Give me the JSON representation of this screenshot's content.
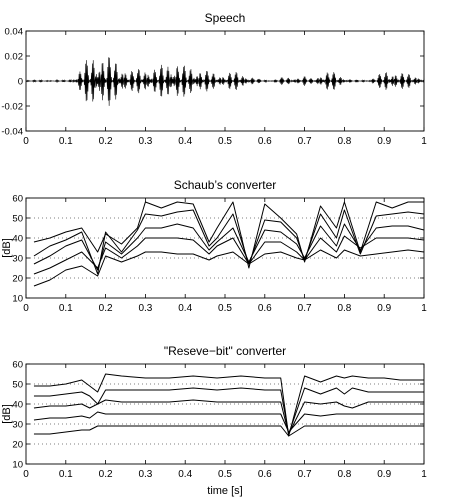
{
  "chart_data": [
    {
      "id": "speech",
      "type": "line",
      "title": "Speech",
      "xlabel": "",
      "ylabel": "",
      "xlim": [
        0,
        1
      ],
      "ylim": [
        -0.04,
        0.04
      ],
      "xticks": [
        0,
        0.1,
        0.2,
        0.3,
        0.4,
        0.5,
        0.6,
        0.7,
        0.8,
        0.9,
        1
      ],
      "xtick_labels": [
        "0",
        "0.1",
        "0.2",
        "0.3",
        "0.4",
        "0.5",
        "0.6",
        "0.7",
        "0.8",
        "0.9",
        "1"
      ],
      "yticks": [
        -0.04,
        -0.02,
        0,
        0.02,
        0.04
      ],
      "ytick_labels": [
        "-0.04",
        "-0.02",
        "0",
        "0.02",
        "0.04"
      ],
      "grid": false,
      "envelope": {
        "x": [
          0,
          0.1,
          0.12,
          0.14,
          0.16,
          0.18,
          0.2,
          0.22,
          0.24,
          0.26,
          0.28,
          0.3,
          0.32,
          0.34,
          0.36,
          0.38,
          0.4,
          0.42,
          0.44,
          0.46,
          0.48,
          0.5,
          0.52,
          0.54,
          0.56,
          0.58,
          0.6,
          0.62,
          0.64,
          0.66,
          0.68,
          0.7,
          0.72,
          0.74,
          0.76,
          0.78,
          0.8,
          0.82,
          0.84,
          0.86,
          0.88,
          0.9,
          0.92,
          0.94,
          0.96,
          0.98,
          1
        ],
        "amplitude": [
          0.0008,
          0.0008,
          0.002,
          0.012,
          0.02,
          0.024,
          0.022,
          0.018,
          0.014,
          0.008,
          0.01,
          0.012,
          0.01,
          0.013,
          0.017,
          0.016,
          0.012,
          0.012,
          0.01,
          0.008,
          0.006,
          0.006,
          0.008,
          0.007,
          0.004,
          0.002,
          0.001,
          0.001,
          0.003,
          0.003,
          0.003,
          0.004,
          0.002,
          0.006,
          0.008,
          0.007,
          0.003,
          0.001,
          0.001,
          0.001,
          0.004,
          0.008,
          0.009,
          0.007,
          0.006,
          0.005,
          0.003
        ]
      }
    },
    {
      "id": "schaub",
      "type": "line",
      "title": "Schaub’s converter",
      "xlabel": "",
      "ylabel": "[dB]",
      "xlim": [
        0,
        1
      ],
      "ylim": [
        10,
        60
      ],
      "xticks": [
        0,
        0.1,
        0.2,
        0.3,
        0.4,
        0.5,
        0.6,
        0.7,
        0.8,
        0.9,
        1
      ],
      "xtick_labels": [
        "0",
        "0.1",
        "0.2",
        "0.3",
        "0.4",
        "0.5",
        "0.6",
        "0.7",
        "0.8",
        "0.9",
        "1"
      ],
      "yticks": [
        10,
        20,
        30,
        40,
        50,
        60
      ],
      "ytick_labels": [
        "10",
        "20",
        "30",
        "40",
        "50",
        "60"
      ],
      "grid": true,
      "x": [
        0.02,
        0.06,
        0.1,
        0.14,
        0.18,
        0.2,
        0.24,
        0.28,
        0.3,
        0.34,
        0.38,
        0.42,
        0.46,
        0.48,
        0.52,
        0.56,
        0.6,
        0.64,
        0.68,
        0.7,
        0.74,
        0.78,
        0.8,
        0.84,
        0.88,
        0.92,
        0.96,
        1
      ],
      "series": [
        {
          "values": [
            38,
            40,
            43,
            45,
            33,
            42,
            37,
            45,
            58,
            55,
            58,
            57,
            38,
            45,
            58,
            25,
            57,
            50,
            42,
            28,
            56,
            45,
            58,
            33,
            58,
            55,
            58,
            58
          ]
        },
        {
          "values": [
            31,
            36,
            39,
            43,
            22,
            43,
            33,
            44,
            52,
            51,
            53,
            54,
            36,
            40,
            52,
            27,
            49,
            48,
            40,
            29,
            52,
            40,
            54,
            32,
            51,
            52,
            53,
            52
          ]
        },
        {
          "values": [
            27,
            31,
            36,
            39,
            24,
            38,
            32,
            40,
            45,
            45,
            47,
            45,
            34,
            38,
            45,
            28,
            44,
            43,
            37,
            30,
            46,
            36,
            47,
            34,
            45,
            46,
            46,
            44
          ]
        },
        {
          "values": [
            22,
            25,
            29,
            33,
            25,
            35,
            30,
            36,
            40,
            40,
            40,
            39,
            32,
            36,
            40,
            27,
            38,
            38,
            33,
            29,
            40,
            33,
            41,
            35,
            40,
            40,
            40,
            39
          ]
        },
        {
          "values": [
            16,
            19,
            24,
            26,
            21,
            31,
            28,
            31,
            33,
            33,
            32,
            32,
            29,
            31,
            33,
            27,
            32,
            33,
            30,
            29,
            34,
            30,
            34,
            31,
            32,
            33,
            34,
            33
          ]
        }
      ]
    },
    {
      "id": "reserve-bit",
      "type": "line",
      "title": "\"Reseve−bit\" converter",
      "xlabel": "time [s]",
      "ylabel": "[dB]",
      "xlim": [
        0,
        1
      ],
      "ylim": [
        10,
        60
      ],
      "xticks": [
        0,
        0.1,
        0.2,
        0.3,
        0.4,
        0.5,
        0.6,
        0.7,
        0.8,
        0.9,
        1
      ],
      "xtick_labels": [
        "0",
        "0.1",
        "0.2",
        "0.3",
        "0.4",
        "0.5",
        "0.6",
        "0.7",
        "0.8",
        "0.9",
        "1"
      ],
      "yticks": [
        10,
        20,
        30,
        40,
        50,
        60
      ],
      "ytick_labels": [
        "10",
        "20",
        "30",
        "40",
        "50",
        "60"
      ],
      "grid": true,
      "x": [
        0.02,
        0.06,
        0.1,
        0.14,
        0.16,
        0.18,
        0.2,
        0.24,
        0.3,
        0.36,
        0.42,
        0.48,
        0.54,
        0.6,
        0.64,
        0.66,
        0.7,
        0.74,
        0.78,
        0.8,
        0.82,
        0.86,
        0.9,
        0.94,
        0.98,
        1
      ],
      "series": [
        {
          "values": [
            49,
            49,
            50,
            52,
            49,
            46,
            55,
            54,
            53,
            53,
            54,
            53,
            54,
            53,
            53,
            24,
            54,
            51,
            54,
            53,
            54,
            53,
            53,
            52,
            52,
            52
          ]
        },
        {
          "values": [
            44,
            44,
            45,
            46,
            44,
            40,
            47,
            47,
            47,
            47,
            48,
            47,
            48,
            47,
            47,
            25,
            48,
            45,
            48,
            45,
            48,
            46,
            46,
            46,
            46,
            46
          ]
        },
        {
          "values": [
            38,
            39,
            39,
            40,
            38,
            40,
            42,
            41,
            41,
            41,
            42,
            41,
            41,
            41,
            41,
            25,
            41,
            40,
            41,
            39,
            38,
            41,
            41,
            41,
            41,
            41
          ]
        },
        {
          "values": [
            32,
            33,
            33,
            34,
            33,
            36,
            35,
            35,
            35,
            35,
            35,
            35,
            35,
            35,
            35,
            26,
            35,
            34,
            35,
            35,
            35,
            35,
            35,
            35,
            35,
            35
          ]
        },
        {
          "values": [
            25,
            25,
            26,
            27,
            27,
            29,
            29,
            29,
            29,
            29,
            29,
            29,
            29,
            29,
            29,
            24,
            29,
            29,
            29,
            29,
            29,
            29,
            29,
            29,
            29,
            29
          ]
        }
      ]
    }
  ]
}
